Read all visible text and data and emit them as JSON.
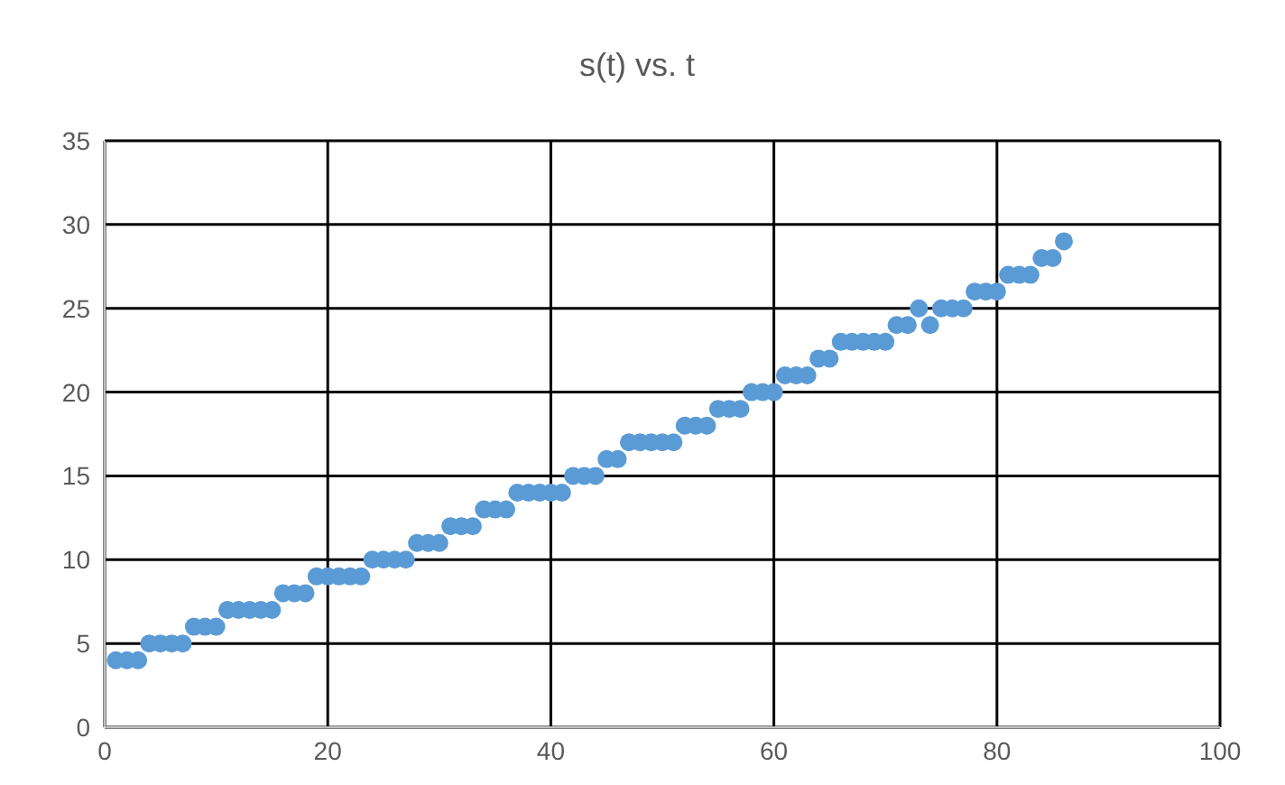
{
  "chart_data": {
    "type": "scatter",
    "title": "s(t) vs. t",
    "x": [
      1,
      2,
      3,
      4,
      5,
      6,
      7,
      8,
      9,
      10,
      11,
      12,
      13,
      14,
      15,
      16,
      17,
      18,
      19,
      20,
      21,
      22,
      23,
      24,
      25,
      26,
      27,
      28,
      29,
      30,
      31,
      32,
      33,
      34,
      35,
      36,
      37,
      38,
      39,
      40,
      41,
      42,
      43,
      44,
      45,
      46,
      47,
      48,
      49,
      50,
      51,
      52,
      53,
      54,
      55,
      56,
      57,
      58,
      59,
      60,
      61,
      62,
      63,
      64,
      65,
      66,
      67,
      68,
      69,
      70,
      71,
      72,
      73,
      74,
      75,
      76,
      77,
      78,
      79,
      80,
      81,
      82,
      83,
      84,
      85,
      86
    ],
    "series": [
      {
        "color": "#5b9bd5",
        "values": [
          4,
          4,
          4,
          5,
          5,
          5,
          5,
          6,
          6,
          6,
          7,
          7,
          7,
          7,
          7,
          8,
          8,
          8,
          9,
          9,
          9,
          9,
          9,
          10,
          10,
          10,
          10,
          11,
          11,
          11,
          12,
          12,
          12,
          13,
          13,
          13,
          14,
          14,
          14,
          14,
          14,
          15,
          15,
          15,
          16,
          16,
          17,
          17,
          17,
          17,
          17,
          18,
          18,
          18,
          19,
          19,
          19,
          20,
          20,
          20,
          21,
          21,
          21,
          22,
          22,
          23,
          23,
          23,
          23,
          23,
          24,
          24,
          25,
          24,
          25,
          25,
          25,
          26,
          26,
          26,
          27,
          27,
          27,
          28,
          28,
          29
        ]
      }
    ],
    "xlim": [
      0,
      100
    ],
    "xticks": [
      0,
      20,
      40,
      60,
      80,
      100
    ],
    "ylim": [
      0,
      35
    ],
    "yticks": [
      0,
      5,
      10,
      15,
      20,
      25,
      30,
      35
    ],
    "grid": true,
    "marker": "circle"
  }
}
